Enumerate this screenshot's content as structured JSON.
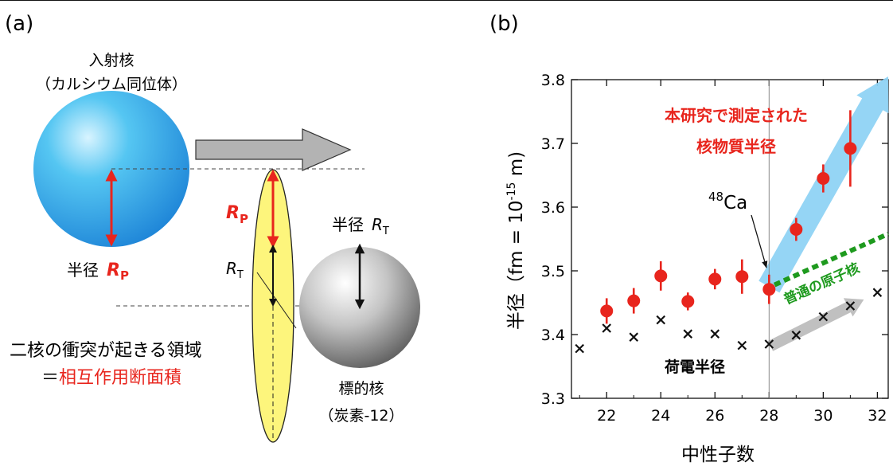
{
  "panel_a": {
    "label": "(a)",
    "projectile_title_line1": "入射核",
    "projectile_title_line2": "（カルシウム同位体）",
    "projectile_radius_prefix": "半径",
    "projectile_radius_symbol": "R",
    "projectile_radius_sub": "P",
    "overlap_radius_symbol": "R",
    "overlap_radius_sub": "P",
    "overlap_target_symbol": "R",
    "overlap_target_sub": "T",
    "target_radius_prefix": "半径",
    "target_radius_symbol": "R",
    "target_radius_sub": "T",
    "collision_line1": "二核の衝突が起きる領域",
    "collision_line2_prefix": "＝",
    "collision_line2_highlight": "相互作用断面積",
    "target_title_line1": "標的核",
    "target_title_line2": "（炭素-12）"
  },
  "panel_b": {
    "label": "(b)",
    "callout_line1": "本研究で測定された",
    "callout_line2": "核物質半径",
    "ca48_mass": "48",
    "ca48_symbol": "Ca",
    "normal_label": "普通の原子核",
    "charge_label": "荷電半径",
    "xlabel": "中性子数",
    "ylabel_main": "半径（fm = 10",
    "ylabel_exp": "-15",
    "ylabel_tail": " m)"
  },
  "chart_data": {
    "type": "scatter",
    "xlabel": "中性子数",
    "ylabel": "半径（fm = 10^-15 m)",
    "xlim": [
      20.7,
      32.4
    ],
    "ylim": [
      3.3,
      3.8
    ],
    "x_ticks": [
      22,
      24,
      26,
      28,
      30,
      32
    ],
    "x_tick_labels": [
      "22",
      "24",
      "26",
      "28",
      "30",
      "32"
    ],
    "y_ticks": [
      3.3,
      3.4,
      3.5,
      3.6,
      3.7,
      3.8
    ],
    "y_tick_labels": [
      "3.3",
      "3.4",
      "3.5",
      "3.6",
      "3.7",
      "3.8"
    ],
    "grid": false,
    "vertical_line_x": 28,
    "series": [
      {
        "name": "本研究で測定された核物質半径",
        "marker": "circle",
        "color": "#e8251d",
        "x": [
          22,
          23,
          24,
          25,
          26,
          27,
          28,
          29,
          30,
          31
        ],
        "y": [
          3.437,
          3.453,
          3.492,
          3.452,
          3.487,
          3.491,
          3.471,
          3.565,
          3.645,
          3.692
        ],
        "yerr": [
          0.02,
          0.02,
          0.023,
          0.014,
          0.016,
          0.027,
          0.023,
          0.018,
          0.022,
          0.06
        ]
      },
      {
        "name": "荷電半径",
        "marker": "x",
        "color": "#111111",
        "x": [
          21,
          22,
          23,
          24,
          25,
          26,
          27,
          28,
          29,
          30,
          31,
          32
        ],
        "y": [
          3.378,
          3.41,
          3.396,
          3.423,
          3.401,
          3.401,
          3.383,
          3.385,
          3.399,
          3.428,
          3.445,
          3.466
        ]
      }
    ],
    "arrows": [
      {
        "color": "#8fd3f4",
        "from": [
          28,
          3.475
        ],
        "to": [
          32.4,
          3.805
        ]
      },
      {
        "color": "#bdbdbd",
        "from": [
          28.05,
          3.382
        ],
        "to": [
          31.5,
          3.455
        ]
      }
    ],
    "dashed_trend": {
      "color": "#1e9a1e",
      "from": [
        28.2,
        3.478
      ],
      "to": [
        32.4,
        3.558
      ]
    }
  }
}
